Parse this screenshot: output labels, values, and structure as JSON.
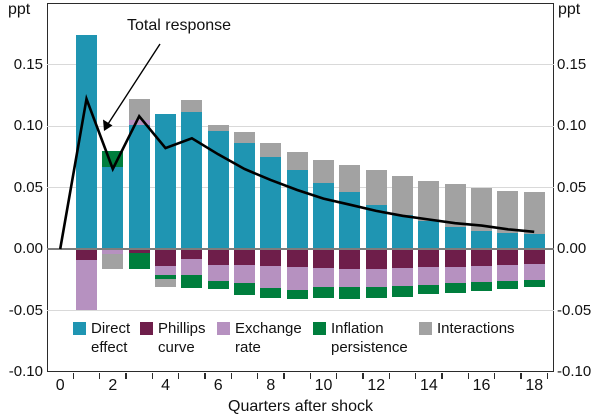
{
  "page": {
    "unit_left": "ppt",
    "unit_right": "ppt",
    "x_axis_label": "Quarters after shock",
    "annotation": "Total response"
  },
  "axis": {
    "y_tick_values": [
      0.15,
      0.1,
      0.05,
      0.0,
      -0.05,
      -0.1
    ],
    "y_tick_labels": [
      "0.15",
      "0.10",
      "0.05",
      "0.00",
      "-0.05",
      "-0.10"
    ],
    "x_tick_values": [
      0,
      2,
      4,
      6,
      8,
      10,
      12,
      14,
      16,
      18
    ],
    "x_tick_labels": [
      "0",
      "2",
      "4",
      "6",
      "8",
      "10",
      "12",
      "14",
      "16",
      "18"
    ]
  },
  "colors": {
    "direct": "#1f95b2",
    "phillips": "#6e1e4a",
    "exchange": "#b691c0",
    "inflation": "#007e3d",
    "interactions": "#a2a2a2",
    "total_line": "#000000",
    "gridline": "#d9d9d9",
    "zero_line": "#7d7d7d",
    "frame": "#2b2b2b"
  },
  "legend": {
    "items": [
      {
        "key": "direct",
        "lines": [
          "Direct",
          "effect"
        ]
      },
      {
        "key": "phillips",
        "lines": [
          "Phillips",
          "curve"
        ]
      },
      {
        "key": "exchange",
        "lines": [
          "Exchange",
          "rate"
        ]
      },
      {
        "key": "inflation",
        "lines": [
          "Inflation",
          "persistence"
        ]
      },
      {
        "key": "interactions",
        "lines": [
          "Interactions"
        ]
      }
    ]
  },
  "chart_data": {
    "type": "bar",
    "subtype": "stacked-bar-with-line",
    "title": "",
    "xlabel": "Quarters after shock",
    "ylabel": "ppt",
    "ylim": [
      -0.1,
      0.2
    ],
    "grid": true,
    "legend_position": "bottom-inside",
    "quarters": [
      1,
      2,
      3,
      4,
      5,
      6,
      7,
      8,
      9,
      10,
      11,
      12,
      13,
      14,
      15,
      16,
      17,
      18
    ],
    "series": [
      {
        "key": "direct",
        "name": "Direct effect",
        "values": [
          0.174,
          0.067,
          0.101,
          0.11,
          0.111,
          0.096,
          0.086,
          0.075,
          0.064,
          0.054,
          0.046,
          0.036,
          0.028,
          0.023,
          0.018,
          0.015,
          0.013,
          0.012
        ]
      },
      {
        "key": "phillips",
        "name": "Phillips curve",
        "values": [
          -0.009,
          0,
          -0.003,
          -0.014,
          -0.008,
          -0.013,
          -0.013,
          -0.014,
          -0.015,
          -0.0155,
          -0.0165,
          -0.016,
          -0.0155,
          -0.015,
          -0.0145,
          -0.014,
          -0.013,
          -0.0125
        ]
      },
      {
        "key": "exchange",
        "name": "Exchange rate",
        "values": [
          -0.041,
          -0.004,
          0.004,
          -0.0075,
          -0.013,
          -0.013,
          -0.015,
          -0.018,
          -0.018,
          -0.015,
          -0.0145,
          -0.0145,
          -0.0145,
          -0.014,
          -0.0135,
          -0.013,
          -0.013,
          -0.0125
        ]
      },
      {
        "key": "inflation",
        "name": "Inflation persistence",
        "values": [
          0,
          0.013,
          -0.013,
          -0.003,
          -0.011,
          -0.0065,
          -0.009,
          -0.008,
          -0.008,
          -0.009,
          -0.0095,
          -0.0095,
          -0.009,
          -0.008,
          -0.008,
          -0.0075,
          -0.0065,
          -0.006
        ]
      },
      {
        "key": "interactions",
        "name": "Interactions",
        "values": [
          0,
          -0.012,
          0.017,
          -0.006,
          0.01,
          0.005,
          0.009,
          0.011,
          0.015,
          0.018,
          0.022,
          0.028,
          0.031,
          0.032,
          0.035,
          0.035,
          0.034,
          0.034
        ]
      }
    ],
    "line": {
      "name": "Total response",
      "quarters": [
        0,
        1,
        2,
        3,
        4,
        5,
        6,
        7,
        8,
        9,
        10,
        11,
        12,
        13,
        14,
        15,
        16,
        17,
        18
      ],
      "values": [
        0,
        0.122,
        0.065,
        0.108,
        0.082,
        0.09,
        0.077,
        0.065,
        0.056,
        0.048,
        0.041,
        0.036,
        0.031,
        0.027,
        0.024,
        0.021,
        0.019,
        0.016,
        0.014
      ]
    }
  }
}
